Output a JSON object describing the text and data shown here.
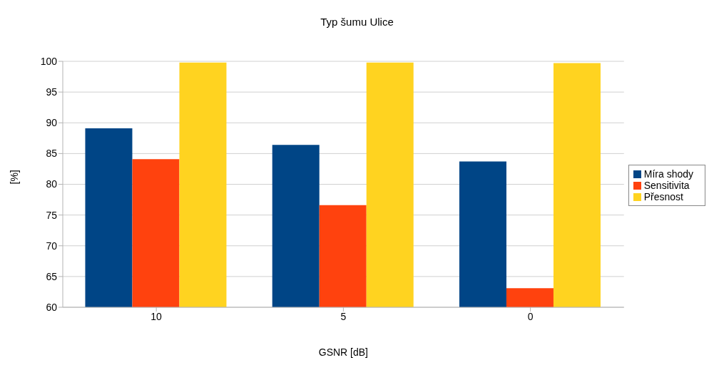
{
  "chart_data": {
    "type": "bar",
    "title": "Typ šumu Ulice",
    "xlabel": "GSNR [dB]",
    "ylabel": "[%]",
    "categories": [
      "10",
      "5",
      "0"
    ],
    "series": [
      {
        "name": "Míra shody",
        "color": "#004586",
        "values": [
          89.1,
          86.4,
          83.7
        ]
      },
      {
        "name": "Sensitivita",
        "color": "#ff420e",
        "values": [
          84.1,
          76.6,
          63.1
        ]
      },
      {
        "name": "Přesnost",
        "color": "#ffd320",
        "values": [
          99.8,
          99.8,
          99.7
        ]
      }
    ],
    "ylim": [
      60,
      100
    ],
    "yticks": [
      60,
      65,
      70,
      75,
      80,
      85,
      90,
      95,
      100
    ],
    "grid": "y",
    "legend": "right"
  }
}
